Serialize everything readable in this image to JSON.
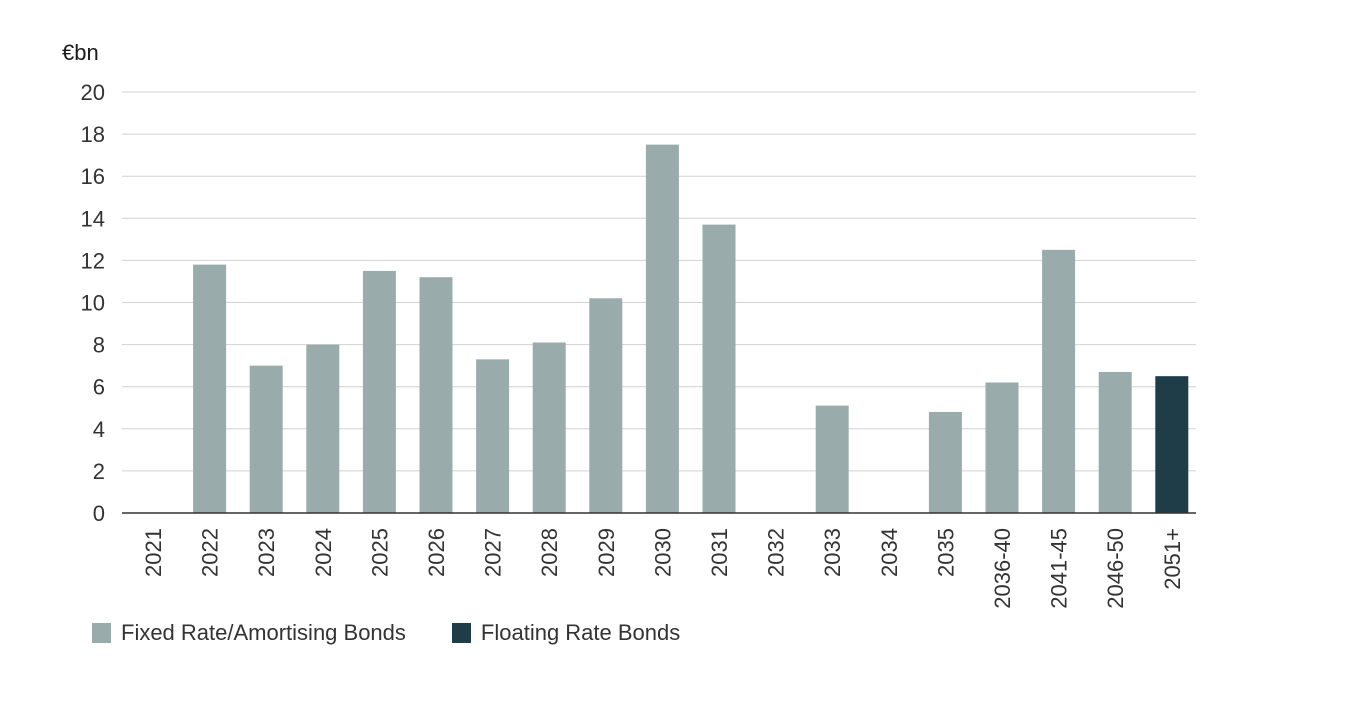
{
  "chart_data": {
    "type": "bar",
    "unit": "€bn",
    "categories": [
      "2021",
      "2022",
      "2023",
      "2024",
      "2025",
      "2026",
      "2027",
      "2028",
      "2029",
      "2030",
      "2031",
      "2032",
      "2033",
      "2034",
      "2035",
      "2036-40",
      "2041-45",
      "2046-50",
      "2051+"
    ],
    "series": [
      {
        "name": "Fixed Rate/Amortising Bonds",
        "color": "#9aabac",
        "values": [
          0,
          11.8,
          7.0,
          8.0,
          11.5,
          11.2,
          7.3,
          8.1,
          10.2,
          17.5,
          13.7,
          0,
          5.1,
          0,
          4.8,
          6.2,
          12.5,
          6.7,
          0
        ]
      },
      {
        "name": "Floating Rate Bonds",
        "color": "#1e3d48",
        "values": [
          0,
          0,
          0,
          0,
          0,
          0,
          0,
          0,
          0,
          0,
          0,
          0,
          0,
          0,
          0,
          0,
          0,
          0,
          6.5
        ]
      }
    ],
    "ylim": [
      0,
      20
    ],
    "yticks": [
      0,
      2,
      4,
      6,
      8,
      10,
      12,
      14,
      16,
      18,
      20
    ],
    "grid": true,
    "legend_position": "bottom-left"
  }
}
